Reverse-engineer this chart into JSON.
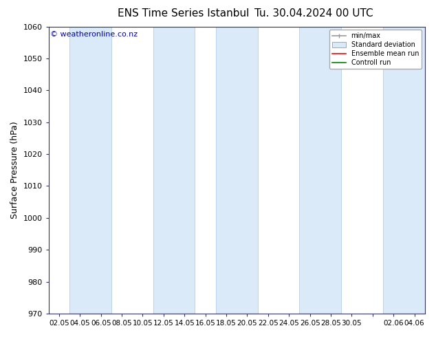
{
  "title_left": "ENS Time Series Istanbul",
  "title_right": "Tu. 30.04.2024 00 UTC",
  "ylabel": "Surface Pressure (hPa)",
  "ylim": [
    970,
    1060
  ],
  "yticks": [
    970,
    980,
    990,
    1000,
    1010,
    1020,
    1030,
    1040,
    1050,
    1060
  ],
  "xtick_labels": [
    "02.05",
    "04.05",
    "06.05",
    "08.05",
    "10.05",
    "12.05",
    "14.05",
    "16.05",
    "18.05",
    "20.05",
    "22.05",
    "24.05",
    "26.05",
    "28.05",
    "30.05",
    "",
    "02.06",
    "04.06"
  ],
  "n_xticks": 18,
  "watermark": "© weatheronline.co.nz",
  "watermark_color": "#0000bb",
  "bg_color": "#ffffff",
  "plot_bg_color": "#ffffff",
  "band_color": "#daeaf8",
  "band_edge_color": "#b8d4ec",
  "legend_labels": [
    "min/max",
    "Standard deviation",
    "Ensemble mean run",
    "Controll run"
  ],
  "legend_colors": [
    "#999999",
    "#c8ddf0",
    "#ff0000",
    "#008000"
  ],
  "figsize": [
    6.34,
    4.9
  ],
  "dpi": 100
}
